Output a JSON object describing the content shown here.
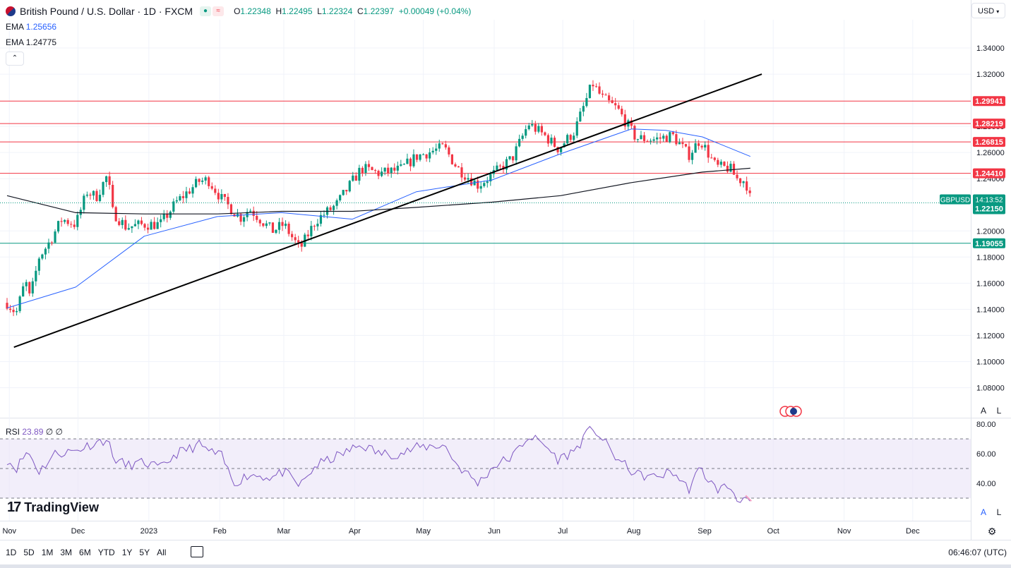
{
  "header": {
    "title": "British Pound / U.S. Dollar · 1D · FXCM",
    "open_label": "O",
    "open": "1.22348",
    "high_label": "H",
    "high": "1.22495",
    "low_label": "L",
    "low": "1.22324",
    "close_label": "C",
    "close": "1.22397",
    "change": "+0.00049 (+0.04%)",
    "currency": "USD",
    "pill_icon_1": "flag-icon",
    "pill_icon_2": "≈"
  },
  "indicators": {
    "ema1_label": "EMA",
    "ema1_value": "1.25656",
    "ema2_label": "EMA",
    "ema2_value": "1.24775",
    "rsi_label": "RSI",
    "rsi_value": "23.89",
    "rsi_extra": "∅ ∅"
  },
  "colors": {
    "up": "#089981",
    "down": "#f23645",
    "ema50": "#2962ff",
    "ema200": "#131722",
    "trendline": "#000000",
    "resistance": "#f23645",
    "support": "#089981",
    "rsi": "#7e57c2",
    "rsi_band": "#e9e2f6",
    "watermark": "#131722"
  },
  "branding": {
    "logo_text": "TradingView",
    "logo_mark": "17"
  },
  "bottom": {
    "ranges": [
      "1D",
      "5D",
      "1M",
      "3M",
      "6M",
      "YTD",
      "1Y",
      "5Y",
      "All"
    ],
    "time": "06:46:07 (UTC)"
  },
  "scale_buttons": {
    "auto": "A",
    "log": "L"
  },
  "chart_data": {
    "type": "candlestick",
    "symbol": "GBPUSD",
    "interval": "1D",
    "ylim": [
      1.07,
      1.36
    ],
    "y_ticks": [
      "1.34000",
      "1.32000",
      "1.28000",
      "1.26000",
      "1.24000",
      "1.20000",
      "1.18000",
      "1.16000",
      "1.14000",
      "1.12000",
      "1.10000",
      "1.08000"
    ],
    "x_ticks": [
      "Nov",
      "Dec",
      "2023",
      "Feb",
      "Mar",
      "Apr",
      "May",
      "Jun",
      "Jul",
      "Aug",
      "Sep",
      "Oct",
      "Nov",
      "Dec"
    ],
    "price_tag": {
      "label": "GBPUSD",
      "countdown": "14:13:52",
      "price": "1.22150"
    },
    "horizontal_levels": [
      {
        "price": 1.29941,
        "label": "1.29941",
        "kind": "resistance"
      },
      {
        "price": 1.28219,
        "label": "1.28219",
        "kind": "resistance"
      },
      {
        "price": 1.26815,
        "label": "1.26815",
        "kind": "resistance"
      },
      {
        "price": 1.2441,
        "label": "1.24410",
        "kind": "resistance"
      },
      {
        "price": 1.19055,
        "label": "1.19055",
        "kind": "support"
      }
    ],
    "trendline": {
      "start": [
        "2022-11-03",
        1.111
      ],
      "end": [
        "2023-09-26",
        1.32
      ]
    },
    "ohlc_anchors": [
      {
        "date": "2022-10-31",
        "close": 1.145
      },
      {
        "date": "2022-11-04",
        "close": 1.137
      },
      {
        "date": "2022-11-08",
        "close": 1.162
      },
      {
        "date": "2022-11-10",
        "close": 1.148
      },
      {
        "date": "2022-11-14",
        "close": 1.18
      },
      {
        "date": "2022-11-18",
        "close": 1.19
      },
      {
        "date": "2022-11-24",
        "close": 1.209
      },
      {
        "date": "2022-11-30",
        "close": 1.205
      },
      {
        "date": "2022-12-05",
        "close": 1.23
      },
      {
        "date": "2022-12-09",
        "close": 1.226
      },
      {
        "date": "2022-12-14",
        "close": 1.243
      },
      {
        "date": "2022-12-16",
        "close": 1.215
      },
      {
        "date": "2022-12-22",
        "close": 1.203
      },
      {
        "date": "2022-12-30",
        "close": 1.205
      },
      {
        "date": "2023-01-06",
        "close": 1.205
      },
      {
        "date": "2023-01-13",
        "close": 1.222
      },
      {
        "date": "2023-01-23",
        "close": 1.238
      },
      {
        "date": "2023-01-27",
        "close": 1.239
      },
      {
        "date": "2023-02-02",
        "close": 1.224
      },
      {
        "date": "2023-02-10",
        "close": 1.21
      },
      {
        "date": "2023-02-14",
        "close": 1.217
      },
      {
        "date": "2023-02-24",
        "close": 1.2
      },
      {
        "date": "2023-03-01",
        "close": 1.205
      },
      {
        "date": "2023-03-08",
        "close": 1.186
      },
      {
        "date": "2023-03-15",
        "close": 1.208
      },
      {
        "date": "2023-03-24",
        "close": 1.22
      },
      {
        "date": "2023-04-04",
        "close": 1.248
      },
      {
        "date": "2023-04-12",
        "close": 1.244
      },
      {
        "date": "2023-04-21",
        "close": 1.247
      },
      {
        "date": "2023-04-28",
        "close": 1.257
      },
      {
        "date": "2023-05-10",
        "close": 1.264
      },
      {
        "date": "2023-05-16",
        "close": 1.248
      },
      {
        "date": "2023-05-25",
        "close": 1.235
      },
      {
        "date": "2023-06-01",
        "close": 1.244
      },
      {
        "date": "2023-06-09",
        "close": 1.256
      },
      {
        "date": "2023-06-16",
        "close": 1.282
      },
      {
        "date": "2023-06-23",
        "close": 1.273
      },
      {
        "date": "2023-06-29",
        "close": 1.263
      },
      {
        "date": "2023-07-06",
        "close": 1.276
      },
      {
        "date": "2023-07-14",
        "close": 1.313
      },
      {
        "date": "2023-07-18",
        "close": 1.302
      },
      {
        "date": "2023-07-25",
        "close": 1.293
      },
      {
        "date": "2023-08-02",
        "close": 1.271
      },
      {
        "date": "2023-08-10",
        "close": 1.27
      },
      {
        "date": "2023-08-18",
        "close": 1.273
      },
      {
        "date": "2023-08-25",
        "close": 1.258
      },
      {
        "date": "2023-08-30",
        "close": 1.27
      },
      {
        "date": "2023-09-06",
        "close": 1.249
      },
      {
        "date": "2023-09-12",
        "close": 1.248
      },
      {
        "date": "2023-09-15",
        "close": 1.24
      },
      {
        "date": "2023-09-19",
        "close": 1.238
      },
      {
        "date": "2023-09-21",
        "close": 1.224
      }
    ],
    "ema50_anchors": [
      {
        "date": "2022-10-31",
        "value": 1.141
      },
      {
        "date": "2022-11-30",
        "value": 1.157
      },
      {
        "date": "2022-12-30",
        "value": 1.196
      },
      {
        "date": "2023-01-31",
        "value": 1.211
      },
      {
        "date": "2023-02-28",
        "value": 1.214
      },
      {
        "date": "2023-03-31",
        "value": 1.209
      },
      {
        "date": "2023-04-28",
        "value": 1.23
      },
      {
        "date": "2023-05-31",
        "value": 1.239
      },
      {
        "date": "2023-06-30",
        "value": 1.259
      },
      {
        "date": "2023-07-31",
        "value": 1.278
      },
      {
        "date": "2023-08-15",
        "value": 1.277
      },
      {
        "date": "2023-08-31",
        "value": 1.272
      },
      {
        "date": "2023-09-21",
        "value": 1.257
      }
    ],
    "ema200_anchors": [
      {
        "date": "2022-10-31",
        "value": 1.227
      },
      {
        "date": "2022-11-30",
        "value": 1.214
      },
      {
        "date": "2022-12-30",
        "value": 1.213
      },
      {
        "date": "2023-01-31",
        "value": 1.213
      },
      {
        "date": "2023-02-28",
        "value": 1.215
      },
      {
        "date": "2023-03-31",
        "value": 1.215
      },
      {
        "date": "2023-04-28",
        "value": 1.218
      },
      {
        "date": "2023-05-31",
        "value": 1.222
      },
      {
        "date": "2023-06-30",
        "value": 1.227
      },
      {
        "date": "2023-07-31",
        "value": 1.237
      },
      {
        "date": "2023-08-31",
        "value": 1.245
      },
      {
        "date": "2023-09-21",
        "value": 1.248
      }
    ],
    "rsi": {
      "ylim": [
        20,
        80
      ],
      "y_ticks": [
        "80.00",
        "60.00",
        "40.00"
      ],
      "bands": [
        70,
        50,
        30
      ],
      "anchors": [
        {
          "date": "2022-10-31",
          "value": 56
        },
        {
          "date": "2022-11-04",
          "value": 50
        },
        {
          "date": "2022-11-09",
          "value": 62
        },
        {
          "date": "2022-11-14",
          "value": 48
        },
        {
          "date": "2022-11-21",
          "value": 60
        },
        {
          "date": "2022-11-30",
          "value": 62
        },
        {
          "date": "2022-12-06",
          "value": 66
        },
        {
          "date": "2022-12-14",
          "value": 70
        },
        {
          "date": "2022-12-16",
          "value": 58
        },
        {
          "date": "2022-12-22",
          "value": 52
        },
        {
          "date": "2022-12-30",
          "value": 54
        },
        {
          "date": "2023-01-06",
          "value": 50
        },
        {
          "date": "2023-01-13",
          "value": 60
        },
        {
          "date": "2023-01-23",
          "value": 66
        },
        {
          "date": "2023-01-27",
          "value": 62
        },
        {
          "date": "2023-02-02",
          "value": 58
        },
        {
          "date": "2023-02-07",
          "value": 40
        },
        {
          "date": "2023-02-14",
          "value": 46
        },
        {
          "date": "2023-02-24",
          "value": 44
        },
        {
          "date": "2023-03-01",
          "value": 48
        },
        {
          "date": "2023-03-08",
          "value": 38
        },
        {
          "date": "2023-03-15",
          "value": 52
        },
        {
          "date": "2023-03-24",
          "value": 58
        },
        {
          "date": "2023-04-04",
          "value": 66
        },
        {
          "date": "2023-04-12",
          "value": 60
        },
        {
          "date": "2023-04-21",
          "value": 60
        },
        {
          "date": "2023-04-28",
          "value": 64
        },
        {
          "date": "2023-05-10",
          "value": 66
        },
        {
          "date": "2023-05-16",
          "value": 52
        },
        {
          "date": "2023-05-25",
          "value": 40
        },
        {
          "date": "2023-06-01",
          "value": 52
        },
        {
          "date": "2023-06-09",
          "value": 58
        },
        {
          "date": "2023-06-16",
          "value": 72
        },
        {
          "date": "2023-06-23",
          "value": 66
        },
        {
          "date": "2023-06-29",
          "value": 56
        },
        {
          "date": "2023-07-06",
          "value": 62
        },
        {
          "date": "2023-07-14",
          "value": 78
        },
        {
          "date": "2023-07-18",
          "value": 70
        },
        {
          "date": "2023-07-25",
          "value": 56
        },
        {
          "date": "2023-08-02",
          "value": 46
        },
        {
          "date": "2023-08-10",
          "value": 44
        },
        {
          "date": "2023-08-18",
          "value": 48
        },
        {
          "date": "2023-08-25",
          "value": 36
        },
        {
          "date": "2023-08-30",
          "value": 50
        },
        {
          "date": "2023-09-06",
          "value": 36
        },
        {
          "date": "2023-09-12",
          "value": 38
        },
        {
          "date": "2023-09-15",
          "value": 30
        },
        {
          "date": "2023-09-19",
          "value": 30
        },
        {
          "date": "2023-09-21",
          "value": 24
        }
      ]
    }
  }
}
